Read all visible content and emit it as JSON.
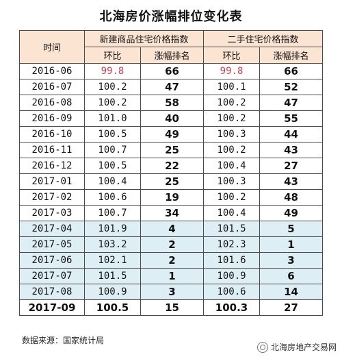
{
  "title": "北海房价涨幅排位变化表",
  "headers": {
    "time": "时间",
    "new_group": "新建商品住宅价格指数",
    "used_group": "二手住宅价格指数",
    "mom": "环比",
    "rank": "涨幅排名"
  },
  "rows": [
    {
      "time": "2016-06",
      "new_mom": "99.8",
      "new_rank": "66",
      "used_mom": "99.8",
      "used_rank": "66",
      "band": "white",
      "red_mom": true
    },
    {
      "time": "2016-07",
      "new_mom": "100.2",
      "new_rank": "47",
      "used_mom": "100.1",
      "used_rank": "52",
      "band": "white"
    },
    {
      "time": "2016-08",
      "new_mom": "100.2",
      "new_rank": "58",
      "used_mom": "100.2",
      "used_rank": "47",
      "band": "white"
    },
    {
      "time": "2016-09",
      "new_mom": "101.0",
      "new_rank": "40",
      "used_mom": "100.2",
      "used_rank": "55",
      "band": "white"
    },
    {
      "time": "2016-10",
      "new_mom": "100.5",
      "new_rank": "49",
      "used_mom": "100.3",
      "used_rank": "44",
      "band": "white"
    },
    {
      "time": "2016-11",
      "new_mom": "100.7",
      "new_rank": "25",
      "used_mom": "100.2",
      "used_rank": "43",
      "band": "white"
    },
    {
      "time": "2016-12",
      "new_mom": "100.5",
      "new_rank": "22",
      "used_mom": "100.4",
      "used_rank": "27",
      "band": "white"
    },
    {
      "time": "2017-01",
      "new_mom": "100.4",
      "new_rank": "25",
      "used_mom": "100.3",
      "used_rank": "43",
      "band": "white"
    },
    {
      "time": "2017-02",
      "new_mom": "100.6",
      "new_rank": "19",
      "used_mom": "100.2",
      "used_rank": "48",
      "band": "white"
    },
    {
      "time": "2017-03",
      "new_mom": "100.7",
      "new_rank": "34",
      "used_mom": "100.4",
      "used_rank": "49",
      "band": "white"
    },
    {
      "time": "2017-04",
      "new_mom": "101.9",
      "new_rank": "4",
      "used_mom": "101.5",
      "used_rank": "5",
      "band": "blue"
    },
    {
      "time": "2017-05",
      "new_mom": "103.2",
      "new_rank": "2",
      "used_mom": "102.3",
      "used_rank": "1",
      "band": "blue"
    },
    {
      "time": "2017-06",
      "new_mom": "102.1",
      "new_rank": "2",
      "used_mom": "101.6",
      "used_rank": "3",
      "band": "blue"
    },
    {
      "time": "2017-07",
      "new_mom": "101.5",
      "new_rank": "1",
      "used_mom": "100.9",
      "used_rank": "6",
      "band": "blue"
    },
    {
      "time": "2017-08",
      "new_mom": "100.9",
      "new_rank": "3",
      "used_mom": "100.6",
      "used_rank": "14",
      "band": "blue"
    },
    {
      "time": "2017-09",
      "new_mom": "100.5",
      "new_rank": "15",
      "used_mom": "100.3",
      "used_rank": "27",
      "band": "white",
      "final": true
    }
  ],
  "source": "数据来源：国家统计局",
  "watermark": "北海房地产交易网",
  "colors": {
    "header_bg": "#fbe4d2",
    "blue_band": "#ddeef5",
    "red_value": "#d93a4a"
  }
}
